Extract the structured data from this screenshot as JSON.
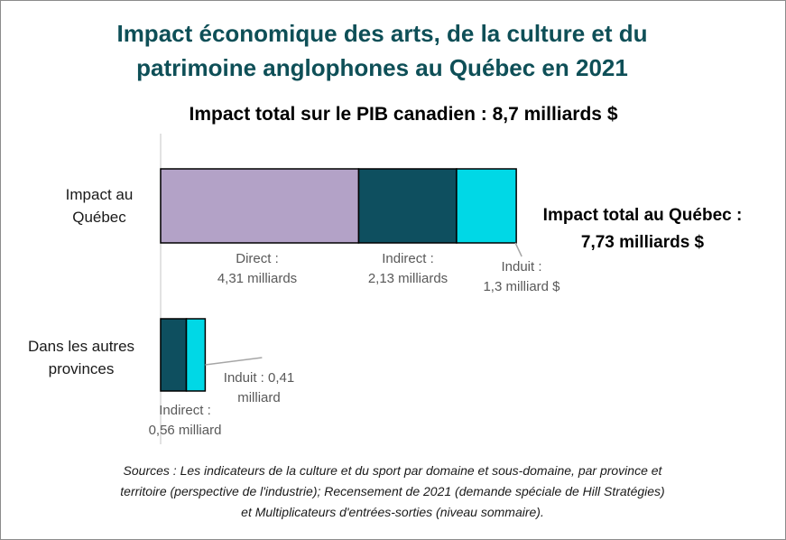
{
  "title_line1": "Impact économique des arts, de la culture et du",
  "title_line2": "patrimoine anglophones au Québec en 2021",
  "subtitle": "Impact total sur le PIB canadien : 8,7 milliards $",
  "total_quebec_line1": "Impact total au Québec :",
  "total_quebec_line2": "7,73 milliards $",
  "sources_line1": "Sources : Les indicateurs de la culture et du sport par domaine et sous-domaine, par province et",
  "sources_line2": "territoire (perspective de l'industrie); Recensement de 2021 (demande spéciale de Hill Stratégies)",
  "sources_line3": "et Multiplicateurs d'entrées-sorties (niveau sommaire).",
  "colors": {
    "direct": "#b3a2c7",
    "indirect": "#0e4f5f",
    "induit": "#00d8e6",
    "title": "#0e4f57"
  },
  "chart_data": {
    "type": "bar",
    "orientation": "horizontal",
    "stacked": true,
    "unit": "milliards $",
    "categories": [
      {
        "line1": "Impact au",
        "line2": "Québec"
      },
      {
        "line1": "Dans les autres",
        "line2": "provinces"
      }
    ],
    "series": [
      {
        "key": "direct",
        "values": [
          4.31,
          0
        ]
      },
      {
        "key": "indirect",
        "values": [
          2.13,
          0.56
        ]
      },
      {
        "key": "induit",
        "values": [
          1.3,
          0.41
        ]
      }
    ],
    "data_labels": {
      "quebec_direct": {
        "line1": "Direct :",
        "line2": "4,31 milliards"
      },
      "quebec_indirect": {
        "line1": "Indirect :",
        "line2": "2,13 milliards"
      },
      "quebec_induit": {
        "line1": "Induit :",
        "line2": "1,3 milliard $"
      },
      "autres_indirect": {
        "line1": "Indirect :",
        "line2": "0,56 milliard"
      },
      "autres_induit": {
        "line1": "Induit : 0,41",
        "line2": "milliard"
      }
    },
    "gridlines": false,
    "legend": "none"
  }
}
